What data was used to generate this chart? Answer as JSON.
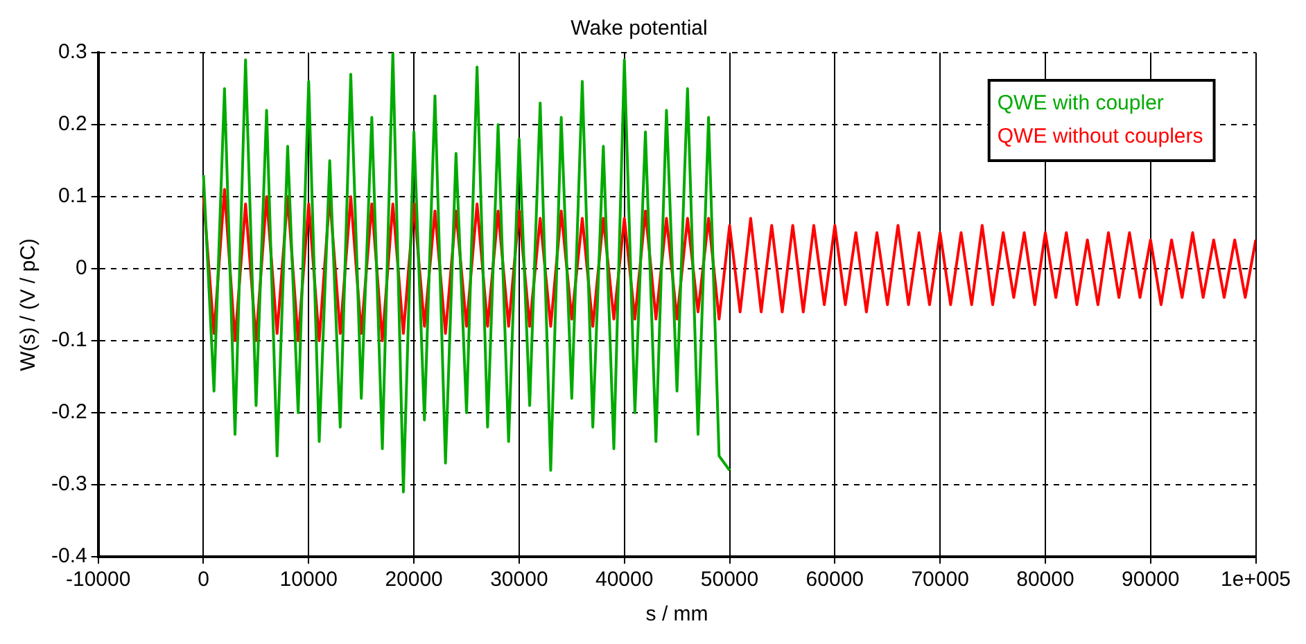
{
  "chart_data": {
    "type": "line",
    "title": "Wake potential",
    "xlabel": "s / mm",
    "ylabel": "W(s) / (V / pC)",
    "xlim": [
      -10000,
      100000
    ],
    "xticks": [
      -10000,
      0,
      10000,
      20000,
      30000,
      40000,
      50000,
      60000,
      70000,
      80000,
      90000,
      {
        "value": 100000,
        "label": "1e+005"
      }
    ],
    "ylim": [
      -0.4,
      0.3
    ],
    "yticks": [
      -0.4,
      -0.3,
      -0.2,
      -0.1,
      0,
      0.1,
      0.2,
      0.3
    ],
    "grid": true,
    "legend": "top right",
    "line_style": "solid",
    "marker": "none",
    "series": [
      {
        "name": "QWE with coupler",
        "color": "#00aa00",
        "x": [
          0,
          1000,
          2000,
          3000,
          4000,
          5000,
          6000,
          7000,
          8000,
          9000,
          10000,
          11000,
          12000,
          13000,
          14000,
          15000,
          16000,
          17000,
          18000,
          19000,
          20000,
          21000,
          22000,
          23000,
          24000,
          25000,
          26000,
          27000,
          28000,
          29000,
          30000,
          31000,
          32000,
          33000,
          34000,
          35000,
          36000,
          37000,
          38000,
          39000,
          40000,
          41000,
          42000,
          43000,
          44000,
          45000,
          46000,
          47000,
          48000,
          49000,
          50000
        ],
        "values": [
          0.13,
          -0.17,
          0.25,
          -0.23,
          0.29,
          -0.19,
          0.22,
          -0.26,
          0.17,
          -0.2,
          0.26,
          -0.24,
          0.15,
          -0.22,
          0.27,
          -0.18,
          0.21,
          -0.25,
          0.3,
          -0.31,
          0.19,
          -0.21,
          0.24,
          -0.27,
          0.16,
          -0.2,
          0.28,
          -0.22,
          0.2,
          -0.24,
          0.18,
          -0.19,
          0.23,
          -0.28,
          0.21,
          -0.18,
          0.26,
          -0.22,
          0.17,
          -0.25,
          0.29,
          -0.2,
          0.19,
          -0.24,
          0.22,
          -0.17,
          0.25,
          -0.23,
          0.21,
          -0.26,
          -0.28
        ]
      },
      {
        "name": "QWE without couplers",
        "color": "#ff0000",
        "x": [
          0,
          1000,
          2000,
          3000,
          4000,
          5000,
          6000,
          7000,
          8000,
          9000,
          10000,
          11000,
          12000,
          13000,
          14000,
          15000,
          16000,
          17000,
          18000,
          19000,
          20000,
          21000,
          22000,
          23000,
          24000,
          25000,
          26000,
          27000,
          28000,
          29000,
          30000,
          31000,
          32000,
          33000,
          34000,
          35000,
          36000,
          37000,
          38000,
          39000,
          40000,
          41000,
          42000,
          43000,
          44000,
          45000,
          46000,
          47000,
          48000,
          49000,
          50000,
          51000,
          52000,
          53000,
          54000,
          55000,
          56000,
          57000,
          58000,
          59000,
          60000,
          61000,
          62000,
          63000,
          64000,
          65000,
          66000,
          67000,
          68000,
          69000,
          70000,
          71000,
          72000,
          73000,
          74000,
          75000,
          76000,
          77000,
          78000,
          79000,
          80000,
          81000,
          82000,
          83000,
          84000,
          85000,
          86000,
          87000,
          88000,
          89000,
          90000,
          91000,
          92000,
          93000,
          94000,
          95000,
          96000,
          97000,
          98000,
          99000,
          100000
        ],
        "values": [
          0.1,
          -0.09,
          0.11,
          -0.1,
          0.09,
          -0.1,
          0.1,
          -0.09,
          0.1,
          -0.1,
          0.09,
          -0.1,
          0.1,
          -0.09,
          0.1,
          -0.09,
          0.09,
          -0.1,
          0.09,
          -0.09,
          0.09,
          -0.08,
          0.08,
          -0.09,
          0.08,
          -0.08,
          0.09,
          -0.08,
          0.08,
          -0.08,
          0.08,
          -0.08,
          0.07,
          -0.08,
          0.08,
          -0.07,
          0.07,
          -0.08,
          0.07,
          -0.07,
          0.07,
          -0.07,
          0.08,
          -0.07,
          0.07,
          -0.07,
          0.07,
          -0.06,
          0.07,
          -0.07,
          0.06,
          -0.06,
          0.07,
          -0.06,
          0.06,
          -0.06,
          0.06,
          -0.06,
          0.06,
          -0.05,
          0.06,
          -0.05,
          0.05,
          -0.06,
          0.05,
          -0.05,
          0.06,
          -0.05,
          0.05,
          -0.05,
          0.05,
          -0.05,
          0.05,
          -0.05,
          0.06,
          -0.05,
          0.05,
          -0.04,
          0.05,
          -0.05,
          0.05,
          -0.04,
          0.05,
          -0.05,
          0.04,
          -0.05,
          0.05,
          -0.04,
          0.05,
          -0.04,
          0.04,
          -0.05,
          0.04,
          -0.04,
          0.05,
          -0.04,
          0.04,
          -0.04,
          0.04,
          -0.04,
          0.04
        ]
      }
    ]
  }
}
